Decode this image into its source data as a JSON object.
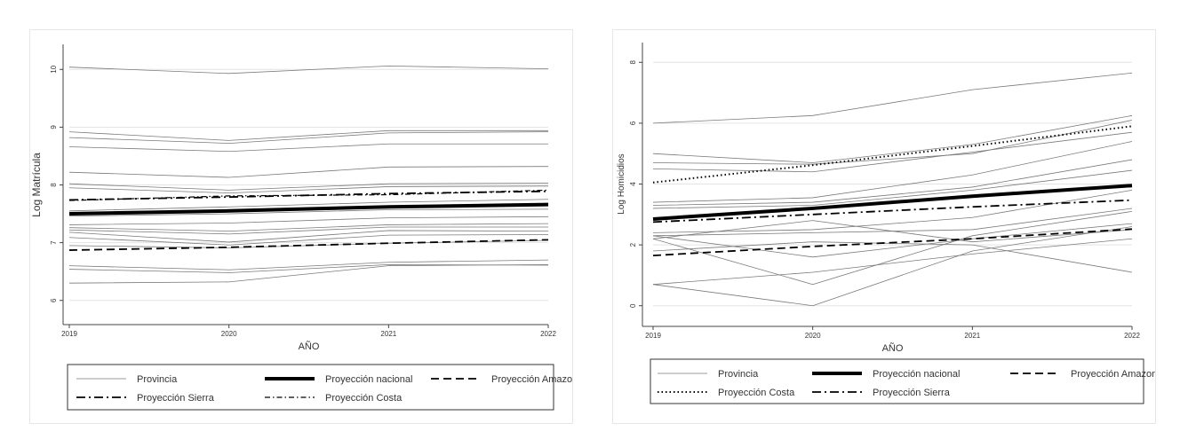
{
  "chart_data": [
    {
      "type": "line",
      "title": "",
      "xlabel": "AÑO",
      "ylabel": "Log Matrícula",
      "x": [
        2019,
        2020,
        2021,
        2022
      ],
      "xticks": [
        "2019",
        "2020",
        "2021",
        "2022"
      ],
      "yticks": [
        "6",
        "7",
        "8",
        "9",
        "10"
      ],
      "ylim": [
        5.75,
        10.25
      ],
      "grid": true,
      "legend": [
        {
          "label": "Provincia",
          "style": "thin"
        },
        {
          "label": "Proyección nacional",
          "style": "bold"
        },
        {
          "label": "Proyección Amazonía",
          "style": "dash"
        },
        {
          "label": "Proyección Sierra",
          "style": "dashdot"
        },
        {
          "label": "Proyección Costa",
          "style": "dashdot-fine"
        }
      ],
      "series": [
        {
          "name": "Proyección nacional",
          "style": "bold",
          "values": [
            7.5,
            7.55,
            7.62,
            7.66
          ]
        },
        {
          "name": "Proyección Amazonía",
          "style": "dash",
          "values": [
            6.87,
            6.92,
            6.99,
            7.05
          ]
        },
        {
          "name": "Proyección Sierra",
          "style": "dashdot",
          "values": [
            7.74,
            7.79,
            7.85,
            7.89
          ]
        },
        {
          "name": "Proyección Costa",
          "style": "dashdot-fine",
          "values": [
            7.73,
            7.81,
            7.83,
            7.91
          ]
        },
        {
          "name": "Provincia",
          "style": "thin",
          "values": [
            10.04,
            9.93,
            10.06,
            10.01
          ]
        },
        {
          "name": "Provincia",
          "style": "thin",
          "values": [
            8.92,
            8.77,
            8.94,
            8.94
          ]
        },
        {
          "name": "Provincia",
          "style": "thin",
          "values": [
            8.82,
            8.72,
            8.9,
            8.92
          ]
        },
        {
          "name": "Provincia",
          "style": "thin",
          "values": [
            8.66,
            8.58,
            8.71,
            8.71
          ]
        },
        {
          "name": "Provincia",
          "style": "thin",
          "values": [
            8.22,
            8.13,
            8.31,
            8.32
          ]
        },
        {
          "name": "Provincia",
          "style": "thin",
          "values": [
            8.02,
            7.91,
            8.02,
            8.03
          ]
        },
        {
          "name": "Provincia",
          "style": "thin",
          "values": [
            7.95,
            7.86,
            7.97,
            7.98
          ]
        },
        {
          "name": "Provincia",
          "style": "thin",
          "values": [
            7.55,
            7.62,
            7.7,
            7.75
          ]
        },
        {
          "name": "Provincia",
          "style": "thin",
          "values": [
            7.46,
            7.5,
            7.57,
            7.58
          ]
        },
        {
          "name": "Provincia",
          "style": "thin",
          "values": [
            7.31,
            7.34,
            7.43,
            7.45
          ]
        },
        {
          "name": "Provincia",
          "style": "thin",
          "values": [
            7.26,
            7.2,
            7.31,
            7.33
          ]
        },
        {
          "name": "Provincia",
          "style": "thin",
          "values": [
            7.22,
            7.15,
            7.27,
            7.27
          ]
        },
        {
          "name": "Provincia",
          "style": "thin",
          "values": [
            7.18,
            7.01,
            7.21,
            7.2
          ]
        },
        {
          "name": "Provincia",
          "style": "thin",
          "values": [
            7.09,
            6.96,
            7.13,
            7.14
          ]
        },
        {
          "name": "Provincia",
          "style": "thin",
          "values": [
            6.95,
            6.91,
            6.99,
            7.04
          ]
        },
        {
          "name": "Provincia",
          "style": "thin",
          "values": [
            6.6,
            6.53,
            6.66,
            6.7
          ]
        },
        {
          "name": "Provincia",
          "style": "thin",
          "values": [
            6.54,
            6.48,
            6.62,
            6.61
          ]
        },
        {
          "name": "Provincia",
          "style": "thin",
          "values": [
            6.3,
            6.32,
            6.6,
            6.62
          ]
        }
      ]
    },
    {
      "type": "line",
      "title": "",
      "xlabel": "AÑO",
      "ylabel": "Log Homicidios",
      "x": [
        2019,
        2020,
        2021,
        2022
      ],
      "xticks": [
        "2019",
        "2020",
        "2021",
        "2022"
      ],
      "yticks": [
        "0",
        "2",
        "4",
        "6",
        "8"
      ],
      "ylim": [
        -0.3,
        8.3
      ],
      "grid": true,
      "legend": [
        {
          "label": "Provincia",
          "style": "thin"
        },
        {
          "label": "Proyección nacional",
          "style": "bold"
        },
        {
          "label": "Proyección Amazonía",
          "style": "dash"
        },
        {
          "label": "Proyección Costa",
          "style": "dot"
        },
        {
          "label": "Proyección Sierra",
          "style": "dashdot"
        }
      ],
      "series": [
        {
          "name": "Proyección nacional",
          "style": "bold",
          "values": [
            2.85,
            3.2,
            3.6,
            3.95
          ]
        },
        {
          "name": "Proyección Amazonía",
          "style": "dash",
          "values": [
            1.65,
            1.95,
            2.2,
            2.52
          ]
        },
        {
          "name": "Proyección Costa",
          "style": "dot",
          "values": [
            4.05,
            4.62,
            5.25,
            5.9
          ]
        },
        {
          "name": "Proyección Sierra",
          "style": "dashdot",
          "values": [
            2.75,
            3.0,
            3.25,
            3.47
          ]
        },
        {
          "name": "Provincia",
          "style": "thin",
          "values": [
            6.0,
            6.25,
            7.1,
            7.65
          ]
        },
        {
          "name": "Provincia",
          "style": "thin",
          "values": [
            5.0,
            4.7,
            5.3,
            6.25
          ]
        },
        {
          "name": "Provincia",
          "style": "thin",
          "values": [
            4.7,
            4.65,
            5.0,
            6.1
          ]
        },
        {
          "name": "Provincia",
          "style": "thin",
          "values": [
            4.5,
            4.4,
            5.05,
            5.7
          ]
        },
        {
          "name": "Provincia",
          "style": "thin",
          "values": [
            3.4,
            3.55,
            4.3,
            5.4
          ]
        },
        {
          "name": "Provincia",
          "style": "thin",
          "values": [
            3.3,
            3.4,
            3.9,
            4.8
          ]
        },
        {
          "name": "Provincia",
          "style": "thin",
          "values": [
            3.2,
            3.3,
            3.8,
            4.45
          ]
        },
        {
          "name": "Provincia",
          "style": "thin",
          "values": [
            2.4,
            2.5,
            2.9,
            3.8
          ]
        },
        {
          "name": "Provincia",
          "style": "thin",
          "values": [
            2.3,
            2.4,
            2.5,
            3.2
          ]
        },
        {
          "name": "Provincia",
          "style": "thin",
          "values": [
            2.2,
            2.8,
            2.1,
            2.5
          ]
        },
        {
          "name": "Provincia",
          "style": "thin",
          "values": [
            2.3,
            1.6,
            2.2,
            2.7
          ]
        },
        {
          "name": "Provincia",
          "style": "thin",
          "values": [
            1.8,
            2.1,
            2.0,
            1.1
          ]
        },
        {
          "name": "Provincia",
          "style": "thin",
          "values": [
            2.2,
            0.7,
            2.3,
            3.1
          ]
        },
        {
          "name": "Provincia",
          "style": "thin",
          "values": [
            0.7,
            1.1,
            1.7,
            2.2
          ]
        },
        {
          "name": "Provincia",
          "style": "thin",
          "values": [
            0.7,
            0.0,
            1.8,
            2.6
          ]
        }
      ]
    }
  ]
}
